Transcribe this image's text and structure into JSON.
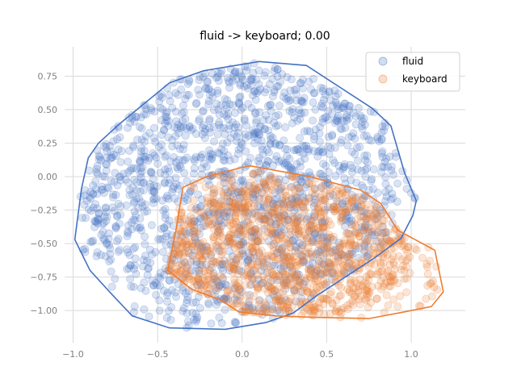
{
  "chart_data": {
    "type": "scatter",
    "title": "fluid -> keyboard; 0.00",
    "xlabel": "",
    "ylabel": "",
    "xlim": [
      -1.05,
      1.32
    ],
    "ylim": [
      -1.24,
      0.97
    ],
    "xticks": [
      -1.0,
      -0.5,
      0.0,
      0.5,
      1.0
    ],
    "xtick_labels": [
      "−1.0",
      "−0.5",
      "0.0",
      "0.5",
      "1.0"
    ],
    "yticks": [
      0.75,
      0.5,
      0.25,
      0.0,
      -0.25,
      -0.5,
      -0.75,
      -1.0
    ],
    "ytick_labels": [
      "0.75",
      "0.50",
      "0.25",
      "0.00",
      "−0.25",
      "−0.50",
      "−0.75",
      "−1.00"
    ],
    "grid": true,
    "legend_position": "top-right",
    "series": [
      {
        "name": "fluid",
        "color": "#4472c4",
        "point_count": 1600,
        "region_center": [
          0.0,
          -0.1
        ],
        "hull": [
          [
            0.1,
            0.86
          ],
          [
            0.38,
            0.83
          ],
          [
            0.77,
            0.51
          ],
          [
            0.88,
            0.38
          ],
          [
            0.96,
            0.03
          ],
          [
            1.03,
            -0.18
          ],
          [
            1.01,
            -0.29
          ],
          [
            0.94,
            -0.46
          ],
          [
            0.78,
            -0.61
          ],
          [
            0.67,
            -0.7
          ],
          [
            0.44,
            -0.89
          ],
          [
            0.3,
            -1.02
          ],
          [
            0.14,
            -1.09
          ],
          [
            -0.1,
            -1.14
          ],
          [
            -0.43,
            -1.13
          ],
          [
            -0.65,
            -1.04
          ],
          [
            -0.77,
            -0.88
          ],
          [
            -0.9,
            -0.7
          ],
          [
            -0.99,
            -0.47
          ],
          [
            -0.95,
            -0.09
          ],
          [
            -0.91,
            0.14
          ],
          [
            -0.85,
            0.25
          ],
          [
            -0.72,
            0.4
          ],
          [
            -0.43,
            0.7
          ],
          [
            -0.23,
            0.79
          ]
        ]
      },
      {
        "name": "keyboard",
        "color": "#ed7d31",
        "point_count": 1200,
        "region_center": [
          0.25,
          -0.55
        ],
        "hull": [
          [
            0.05,
            0.08
          ],
          [
            0.4,
            -0.0
          ],
          [
            0.7,
            -0.1
          ],
          [
            0.82,
            -0.2
          ],
          [
            0.92,
            -0.4
          ],
          [
            1.14,
            -0.55
          ],
          [
            1.19,
            -0.86
          ],
          [
            1.12,
            -0.97
          ],
          [
            0.96,
            -1.01
          ],
          [
            0.75,
            -1.06
          ],
          [
            0.4,
            -1.05
          ],
          [
            0.2,
            -1.04
          ],
          [
            -0.02,
            -1.01
          ],
          [
            -0.13,
            -0.92
          ],
          [
            -0.3,
            -0.84
          ],
          [
            -0.44,
            -0.7
          ],
          [
            -0.39,
            -0.39
          ],
          [
            -0.35,
            -0.08
          ],
          [
            -0.21,
            0.0
          ],
          [
            0.0,
            0.07
          ]
        ]
      }
    ]
  }
}
